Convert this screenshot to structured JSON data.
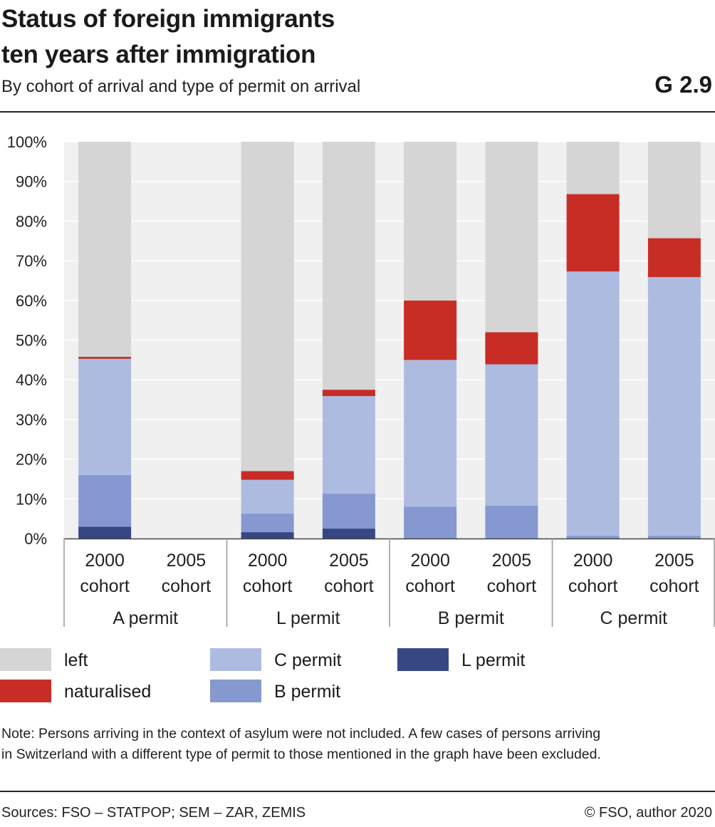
{
  "header": {
    "title_line1": "Status of foreign immigrants",
    "title_line2": "ten years after immigration",
    "subtitle": "By cohort of arrival and type of permit on arrival",
    "graph_number": "G 2.9"
  },
  "legend": [
    {
      "label": "left",
      "color": "#d4d5d4"
    },
    {
      "label": "naturalised",
      "color": "#c72d25"
    },
    {
      "label": "C permit",
      "color": "#adbbe1"
    },
    {
      "label": "B permit",
      "color": "#8698d0"
    },
    {
      "label": "L permit",
      "color": "#374784"
    }
  ],
  "chart_data": {
    "type": "bar",
    "stacked": true,
    "ylim": [
      0,
      100
    ],
    "yticks": [
      "0%",
      "10%",
      "20%",
      "30%",
      "40%",
      "50%",
      "60%",
      "70%",
      "80%",
      "90%",
      "100%"
    ],
    "groups": [
      {
        "label": "A permit",
        "categories": [
          "2000 cohort",
          "2005 cohort"
        ]
      },
      {
        "label": "L permit",
        "categories": [
          "2000 cohort",
          "2005 cohort"
        ]
      },
      {
        "label": "B permit",
        "categories": [
          "2000 cohort",
          "2005 cohort"
        ]
      },
      {
        "label": "C permit",
        "categories": [
          "2000 cohort",
          "2005 cohort"
        ]
      }
    ],
    "category_lines": [
      [
        "2000",
        "cohort"
      ],
      [
        "2005",
        "cohort"
      ]
    ],
    "series": [
      {
        "name": "L permit",
        "color": "#374784",
        "values": [
          3.0,
          0,
          1.6,
          2.5,
          0,
          0,
          0,
          0
        ]
      },
      {
        "name": "B permit",
        "color": "#8698d0",
        "values": [
          13.0,
          0,
          4.7,
          8.8,
          8.0,
          8.3,
          0.7,
          0.7
        ]
      },
      {
        "name": "C permit",
        "color": "#adbbe1",
        "values": [
          29.3,
          0,
          8.5,
          24.6,
          37.0,
          35.6,
          66.6,
          65.2
        ]
      },
      {
        "name": "naturalised",
        "color": "#c72d25",
        "values": [
          0.5,
          0,
          2.2,
          1.6,
          15.0,
          8.1,
          19.5,
          9.8
        ]
      },
      {
        "name": "left",
        "color": "#d4d5d4",
        "values": [
          54.2,
          0,
          83.0,
          62.5,
          40.0,
          48.0,
          13.2,
          24.3
        ]
      }
    ]
  },
  "footer": {
    "note_line1": "Note: Persons arriving in the context of asylum were not included. A few cases of persons arriving",
    "note_line2": "in Switzerland with a different type of permit to those mentioned in the graph have been excluded.",
    "sources": "Sources: FSO – STATPOP; SEM – ZAR, ZEMIS",
    "copyright": "© FSO, author 2020"
  }
}
